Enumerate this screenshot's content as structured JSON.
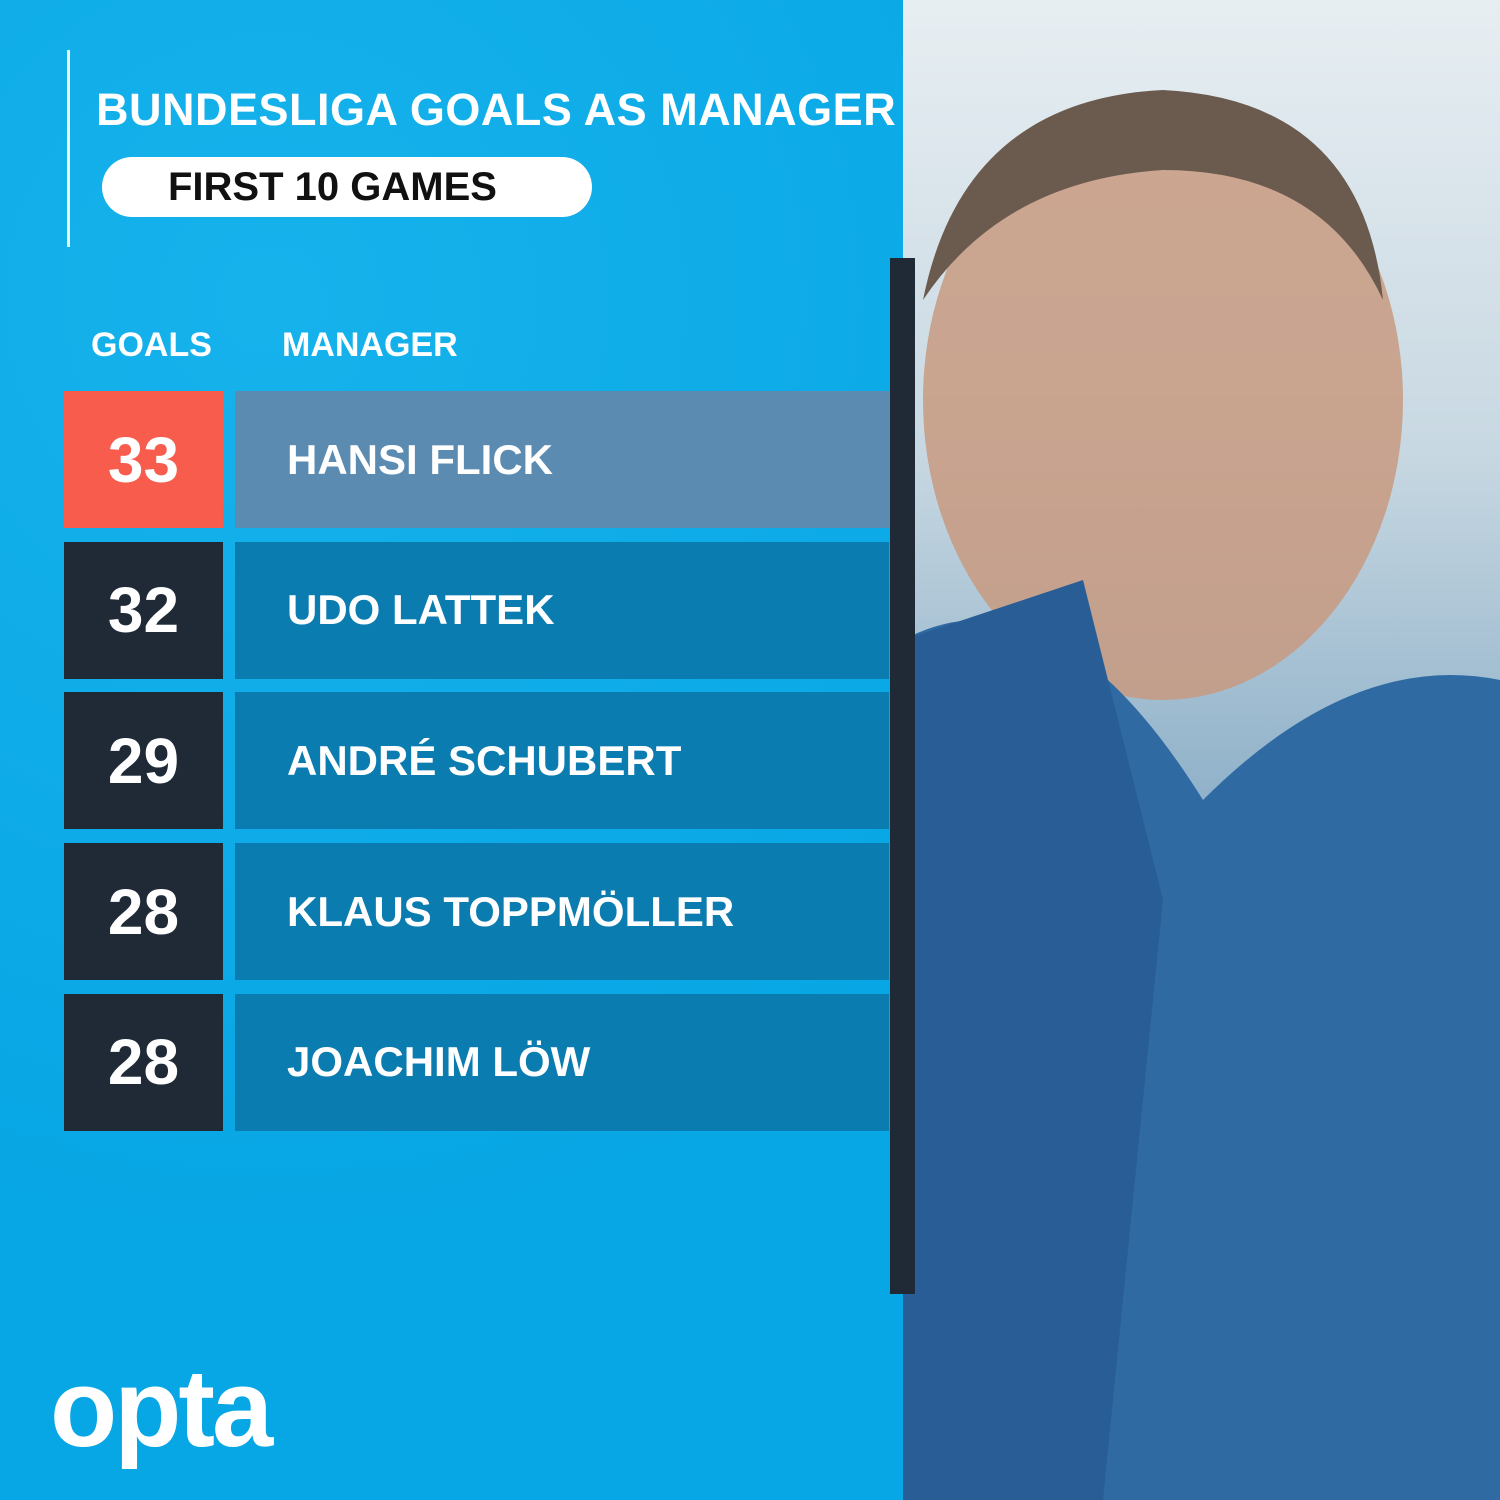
{
  "title": "BUNDESLIGA GOALS AS MANAGER",
  "subtitle": "FIRST 10 GAMES",
  "headers": {
    "goals": "GOALS",
    "manager": "MANAGER"
  },
  "logo": "opta",
  "colors": {
    "background": "#0aabe8",
    "highlight_goal": "#f85c4d",
    "highlight_name": "#5b8bb1",
    "goal_box": "#1f2a36",
    "name_box": "#0b7cb0"
  },
  "chart_data": {
    "type": "table",
    "title": "BUNDESLIGA GOALS AS MANAGER",
    "subtitle": "FIRST 10 GAMES",
    "columns": [
      "GOALS",
      "MANAGER"
    ],
    "rows": [
      {
        "goals": "33",
        "manager": "HANSI FLICK",
        "highlighted": true
      },
      {
        "goals": "32",
        "manager": "UDO LATTEK"
      },
      {
        "goals": "29",
        "manager": "ANDRÉ SCHUBERT"
      },
      {
        "goals": "28",
        "manager": "KLAUS TOPPMÖLLER"
      },
      {
        "goals": "28",
        "manager": "JOACHIM LÖW"
      }
    ]
  }
}
